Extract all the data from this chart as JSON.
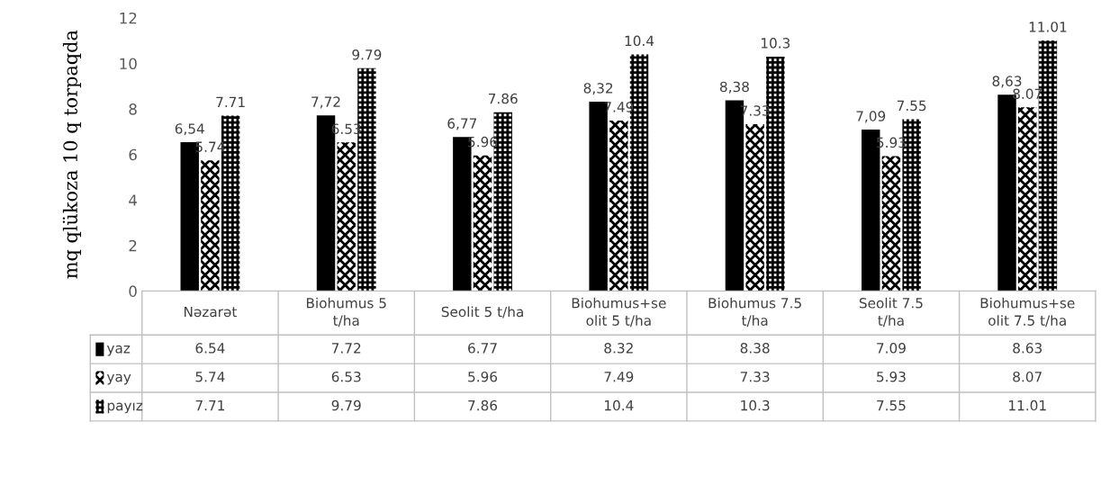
{
  "chart_data": {
    "type": "bar",
    "ylabel": "mq qlükoza 10 q torpaqda",
    "categories": [
      "Nəzarət",
      "Biohumus 5 t/ha",
      "Seolit 5 t/ha",
      "Biohumus+seolit 5 t/ha",
      "Biohumus 7.5 t/ha",
      "Seolit 7.5 t/ha",
      "Biohumus+seolit 7.5 t/ha"
    ],
    "series": [
      {
        "name": "yaz",
        "color": "#000000",
        "values": [
          6.54,
          7.72,
          6.77,
          8.32,
          8.38,
          7.09,
          8.63
        ],
        "value_labels": [
          "6,54",
          "7,72",
          "6,77",
          "8,32",
          "8,38",
          "7,09",
          "8,63"
        ]
      },
      {
        "name": "yay",
        "color": "#000000",
        "values": [
          5.74,
          6.53,
          5.96,
          7.49,
          7.33,
          5.93,
          8.07
        ],
        "value_labels": [
          "5.74",
          "6.53",
          "5.96",
          "7.49",
          "7.33",
          "5.93",
          "8.07"
        ]
      },
      {
        "name": "payız",
        "color": "#000000",
        "values": [
          7.71,
          9.79,
          7.86,
          10.4,
          10.3,
          7.55,
          11.01
        ],
        "value_labels": [
          "7.71",
          "9.79",
          "7.86",
          "10.4",
          "10.3",
          "7.55",
          "11.01"
        ]
      }
    ],
    "annotations": [
      "6.54",
      "7.72",
      "6.77",
      "8.32",
      "8.38",
      "7.09",
      "8.63",
      "5.74",
      "6.53",
      "5.96",
      "7.49",
      "7.33",
      "5.93",
      "8.07",
      "7.71",
      "9.79",
      "7.86",
      "10.4",
      "10.3",
      "7.55",
      "11.01"
    ],
    "ylim": [
      0,
      12
    ],
    "yticks": [
      0,
      2,
      4,
      6,
      8,
      10,
      12
    ],
    "grid": false,
    "legend": "bottom left",
    "data_labels": true
  }
}
